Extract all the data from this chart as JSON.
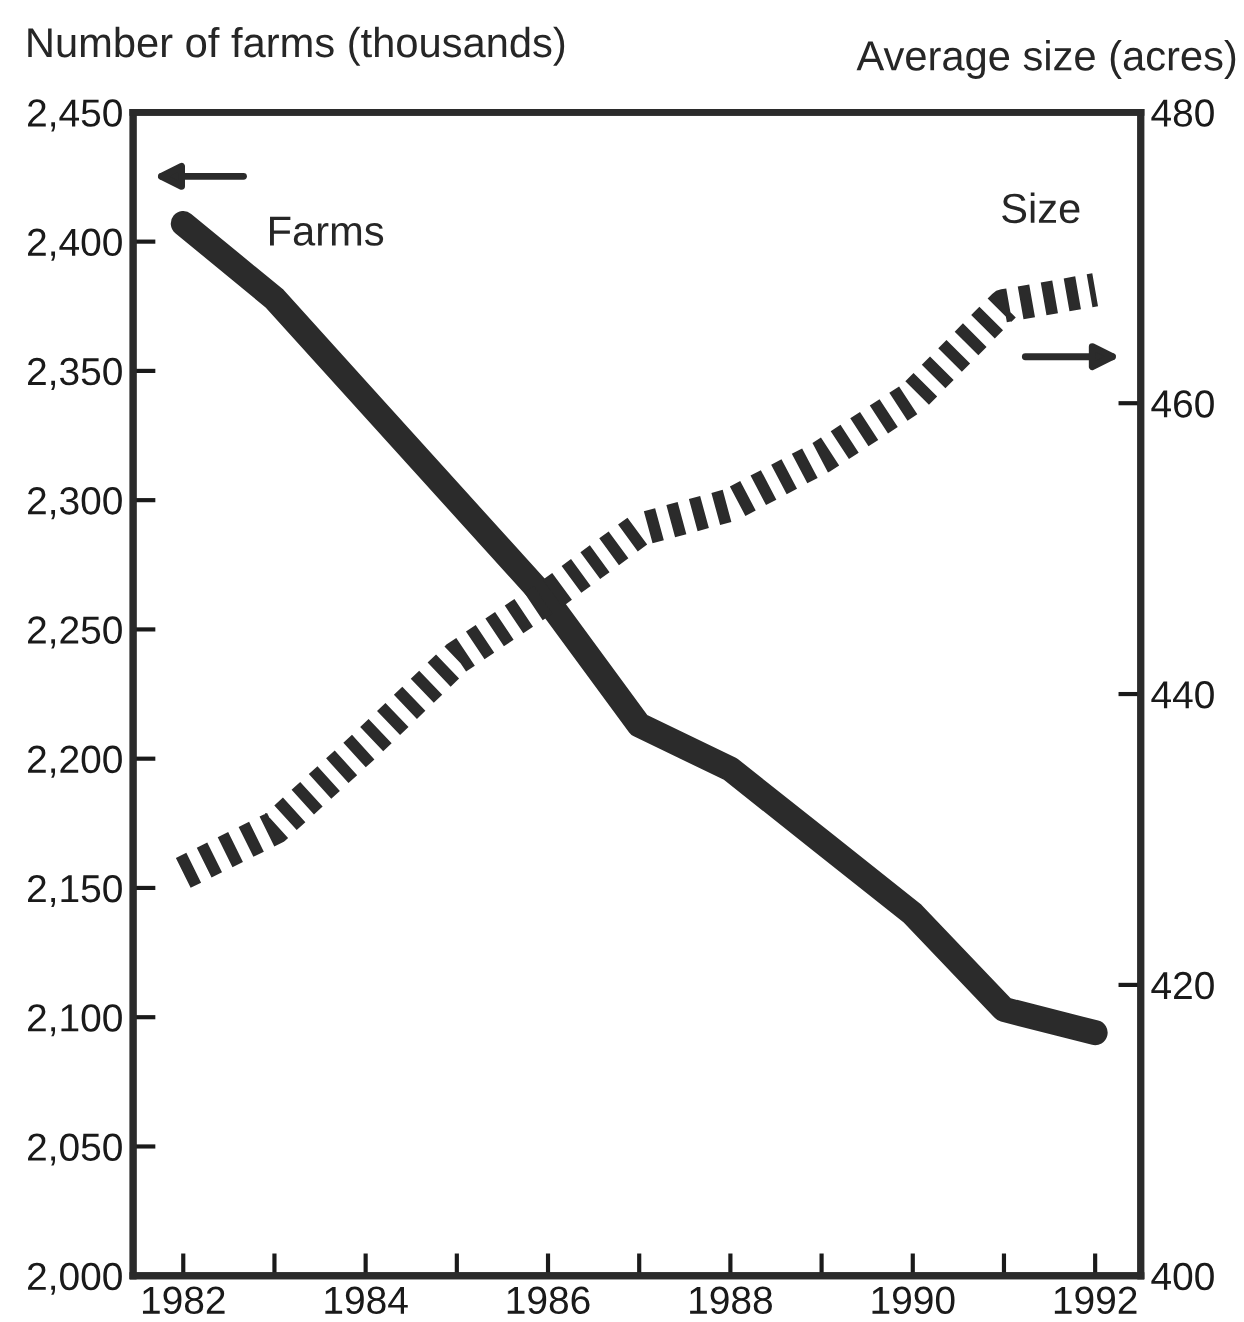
{
  "chart_data": {
    "type": "line",
    "ylabel": "Number of farms (thousands)",
    "y2label": "Average size (acres)",
    "x": [
      1982,
      1983,
      1984,
      1985,
      1986,
      1987,
      1988,
      1989,
      1990,
      1991,
      1992
    ],
    "series": [
      {
        "name": "Farms",
        "color": "#2b2b2b",
        "line_style": "solid",
        "values": [
          2407,
          2378,
          2339,
          2300,
          2261,
          2213,
          2196,
          2168,
          2140,
          2103,
          2094
        ]
      },
      {
        "name": "Size",
        "color": "#2b2b2b",
        "line_style": "dotted",
        "axis": "y2",
        "values": [
          427.7,
          430.8,
          436.5,
          442.5,
          446.7,
          451.3,
          453,
          456.3,
          460.4,
          466.7,
          467.8
        ]
      }
    ],
    "xlim": [
      1981.45,
      1992.5
    ],
    "xticks": [
      1982,
      {
        "value": 1983,
        "label": null
      },
      1984,
      {
        "value": 1985,
        "label": null
      },
      1986,
      {
        "value": 1987,
        "label": null
      },
      1988,
      {
        "value": 1989,
        "label": null
      },
      1990,
      {
        "value": 1991,
        "label": null
      },
      1992
    ],
    "ylim": [
      2000,
      2450
    ],
    "yticks": [
      {
        "value": 2000,
        "label": "2,000"
      },
      {
        "value": 2050,
        "label": "2,050"
      },
      {
        "value": 2100,
        "label": "2,100"
      },
      {
        "value": 2150,
        "label": "2,150"
      },
      {
        "value": 2200,
        "label": "2,200"
      },
      {
        "value": 2250,
        "label": "2,250"
      },
      {
        "value": 2300,
        "label": "2,300"
      },
      {
        "value": 2350,
        "label": "2,350"
      },
      {
        "value": 2400,
        "label": "2,400"
      },
      {
        "value": 2450,
        "label": "2,450"
      }
    ],
    "y2lim": [
      400,
      480
    ],
    "y2ticks": [
      400,
      420,
      440,
      460,
      480
    ],
    "grid": false,
    "legend": false,
    "marker": "none"
  }
}
